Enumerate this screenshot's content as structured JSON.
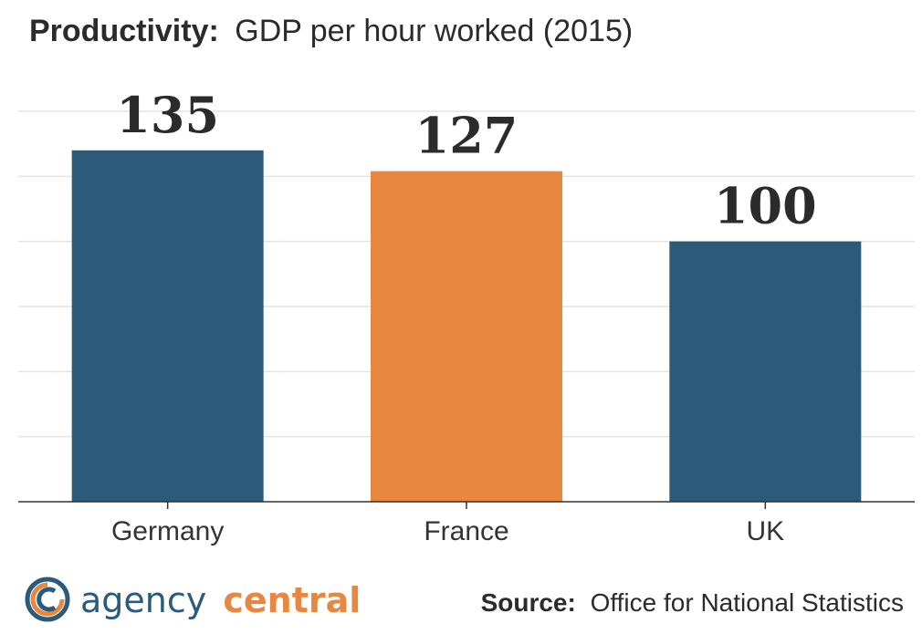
{
  "chart_data": {
    "type": "bar",
    "title_bold": "Productivity:",
    "title_rest": "GDP per hour worked (2015)",
    "xlabel": "",
    "ylabel": "",
    "categories": [
      "Germany",
      "France",
      "UK"
    ],
    "values": [
      135,
      127,
      100
    ],
    "value_labels": [
      "135",
      "127",
      "100"
    ],
    "colors": [
      "#2b5a7a",
      "#e8873f",
      "#2b5a7a"
    ],
    "ylim": [
      0,
      150
    ],
    "grid": true,
    "legend": "none"
  },
  "source": {
    "label": "Source:",
    "text": "Office for National Statistics"
  },
  "logo": {
    "word1": "agency",
    "word2": "central",
    "color1": "#2b5a7a",
    "color2": "#e8873f"
  }
}
